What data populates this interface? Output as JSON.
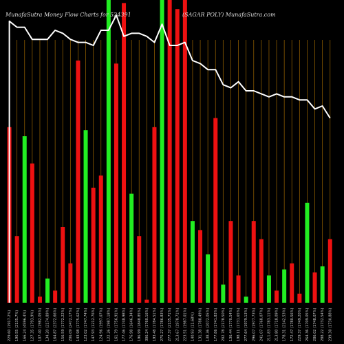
{
  "colors": {
    "background": "#000000",
    "grid": "#8a5a00",
    "up_bar": "#22ee22",
    "down_bar": "#ee1111",
    "line": "#ffffff",
    "axis_text": "#cccccc",
    "title_text": "#dddddd"
  },
  "chart_data": {
    "type": "bar",
    "title": "MunafaSutra  Money Flow  Charts for 524391",
    "subtitle": "(SAGAR POLY) MunafaSutra.com",
    "xlabel": "",
    "ylabel": "",
    "grid": true,
    "bar_scale_max": 100,
    "line_scale_max": 100,
    "categories": [
      "229.60 (1917.2%)",
      "190.55 (2135.7%)",
      "166.24 (4596.4%)",
      "127.35 (1793.9%)",
      "107.40 (1982.05%)",
      "134.20 (2174.89%)",
      "164.87 (2372.66%)",
      "156.59 (1772.22%)",
      "206.09 (2472.17%)",
      "143.98 (1775.62%)",
      "123.02 (1747.74%)",
      "147.93 (1212.76%)",
      "124.96 (1997.07%)",
      "122.26 (1987.18%)",
      "161.79 (1756.91%)",
      "177.46 (1748.98%)",
      "176.98 (1646.34%)",
      "196.99 (1848.85%)",
      "306.24 (1760.16%)",
      "193.48 (1784.51%)",
      "275.27 (1786.83%)",
      "277.37 (2135.71%)",
      "213.67 (1978.71%)",
      "223.51 (1987.01%)",
      "140.93 (11.68%)",
      "131.38 (1788.49%)",
      "138.36 (2072.05%)",
      "177.86 (1741.83%)",
      "202.78 (2178.50%)",
      "136.44 (1770.54%)",
      "198.11 (1731.65%)",
      "277.64 (1979.13%)",
      "296.07 (1977.73%)",
      "241.07 (1768.07%)",
      "211.83 (1783.11%)",
      "213.80 (1718.09%)",
      "178.31 (2142.53%)",
      "172.47 (1780.56%)",
      "229.37 (1749.20%)",
      "264.36 (1709.05%)",
      "286.02 (1748.07%)",
      "288.22 (1732.54%)",
      "239.30 (1730.88%)"
    ],
    "series": [
      {
        "values": [
          58,
          22,
          55,
          46,
          2,
          8,
          4,
          25,
          13,
          80,
          57,
          38,
          42,
          100,
          79,
          99,
          36,
          22,
          1,
          58,
          100,
          100,
          97,
          100,
          27,
          24,
          16,
          61,
          6,
          27,
          9,
          2,
          27,
          21,
          9,
          4,
          11,
          13,
          3,
          33,
          10,
          12,
          21
        ],
        "direction": [
          "down",
          "down",
          "up",
          "down",
          "down",
          "up",
          "down",
          "down",
          "down",
          "down",
          "up",
          "down",
          "down",
          "up",
          "down",
          "down",
          "up",
          "down",
          "down",
          "down",
          "up",
          "down",
          "down",
          "down",
          "up",
          "down",
          "up",
          "down",
          "up",
          "down",
          "down",
          "up",
          "down",
          "down",
          "up",
          "down",
          "up",
          "down",
          "down",
          "up",
          "down",
          "up",
          "down"
        ]
      },
      {
        "values": [
          93,
          91,
          91,
          87,
          87,
          87,
          90,
          89,
          87,
          86,
          86,
          85,
          90,
          90,
          95,
          88,
          89,
          89,
          88,
          86,
          92,
          85,
          85,
          86,
          80,
          79,
          77,
          77,
          72,
          71,
          73,
          70,
          70,
          69,
          68,
          69,
          68,
          68,
          67,
          67,
          64,
          65,
          61
        ]
      }
    ],
    "legend": "none"
  }
}
